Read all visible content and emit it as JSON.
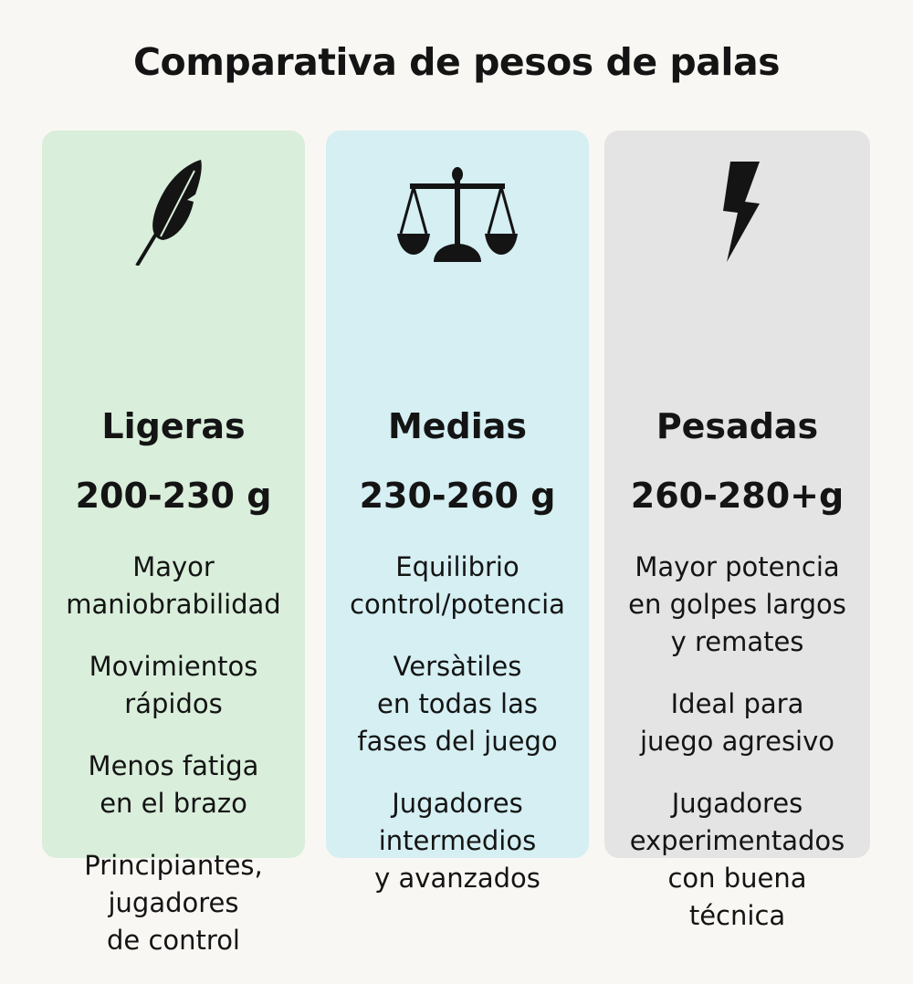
{
  "title": "Comparativa de pesos de palas",
  "colors": {
    "background": "#f9f7f3",
    "ligeras": "#d9eedb",
    "medias": "#d5eff3",
    "pesadas": "#e4e4e4"
  },
  "cards": [
    {
      "name": "Ligeras",
      "weight": "200-230 g",
      "icon": "feather-icon",
      "bullets": [
        [
          "Mayor",
          "maniobrabilidad"
        ],
        [
          "Movimientos",
          "rápidos"
        ],
        [
          "Menos fatiga",
          "en el brazo"
        ],
        [
          "Principiantes,",
          "jugadores",
          "de control"
        ]
      ]
    },
    {
      "name": "Medias",
      "weight": "230-260 g",
      "icon": "balance-scale-icon",
      "bullets": [
        [
          "Equilibrio",
          "control/potencia"
        ],
        [
          "Versàtiles",
          "en todas las",
          "fases del juego"
        ],
        [
          "Jugadores",
          "intermedios",
          "y avanzados"
        ]
      ]
    },
    {
      "name": "Pesadas",
      "weight": "260-280+g",
      "icon": "lightning-bolt-icon",
      "bullets": [
        [
          "Mayor potencia",
          "en golpes largos",
          "y remates"
        ],
        [
          "Ideal para",
          "juego agresivo"
        ],
        [
          "Jugadores",
          "experimentados",
          "con buena",
          "técnica"
        ]
      ]
    }
  ]
}
